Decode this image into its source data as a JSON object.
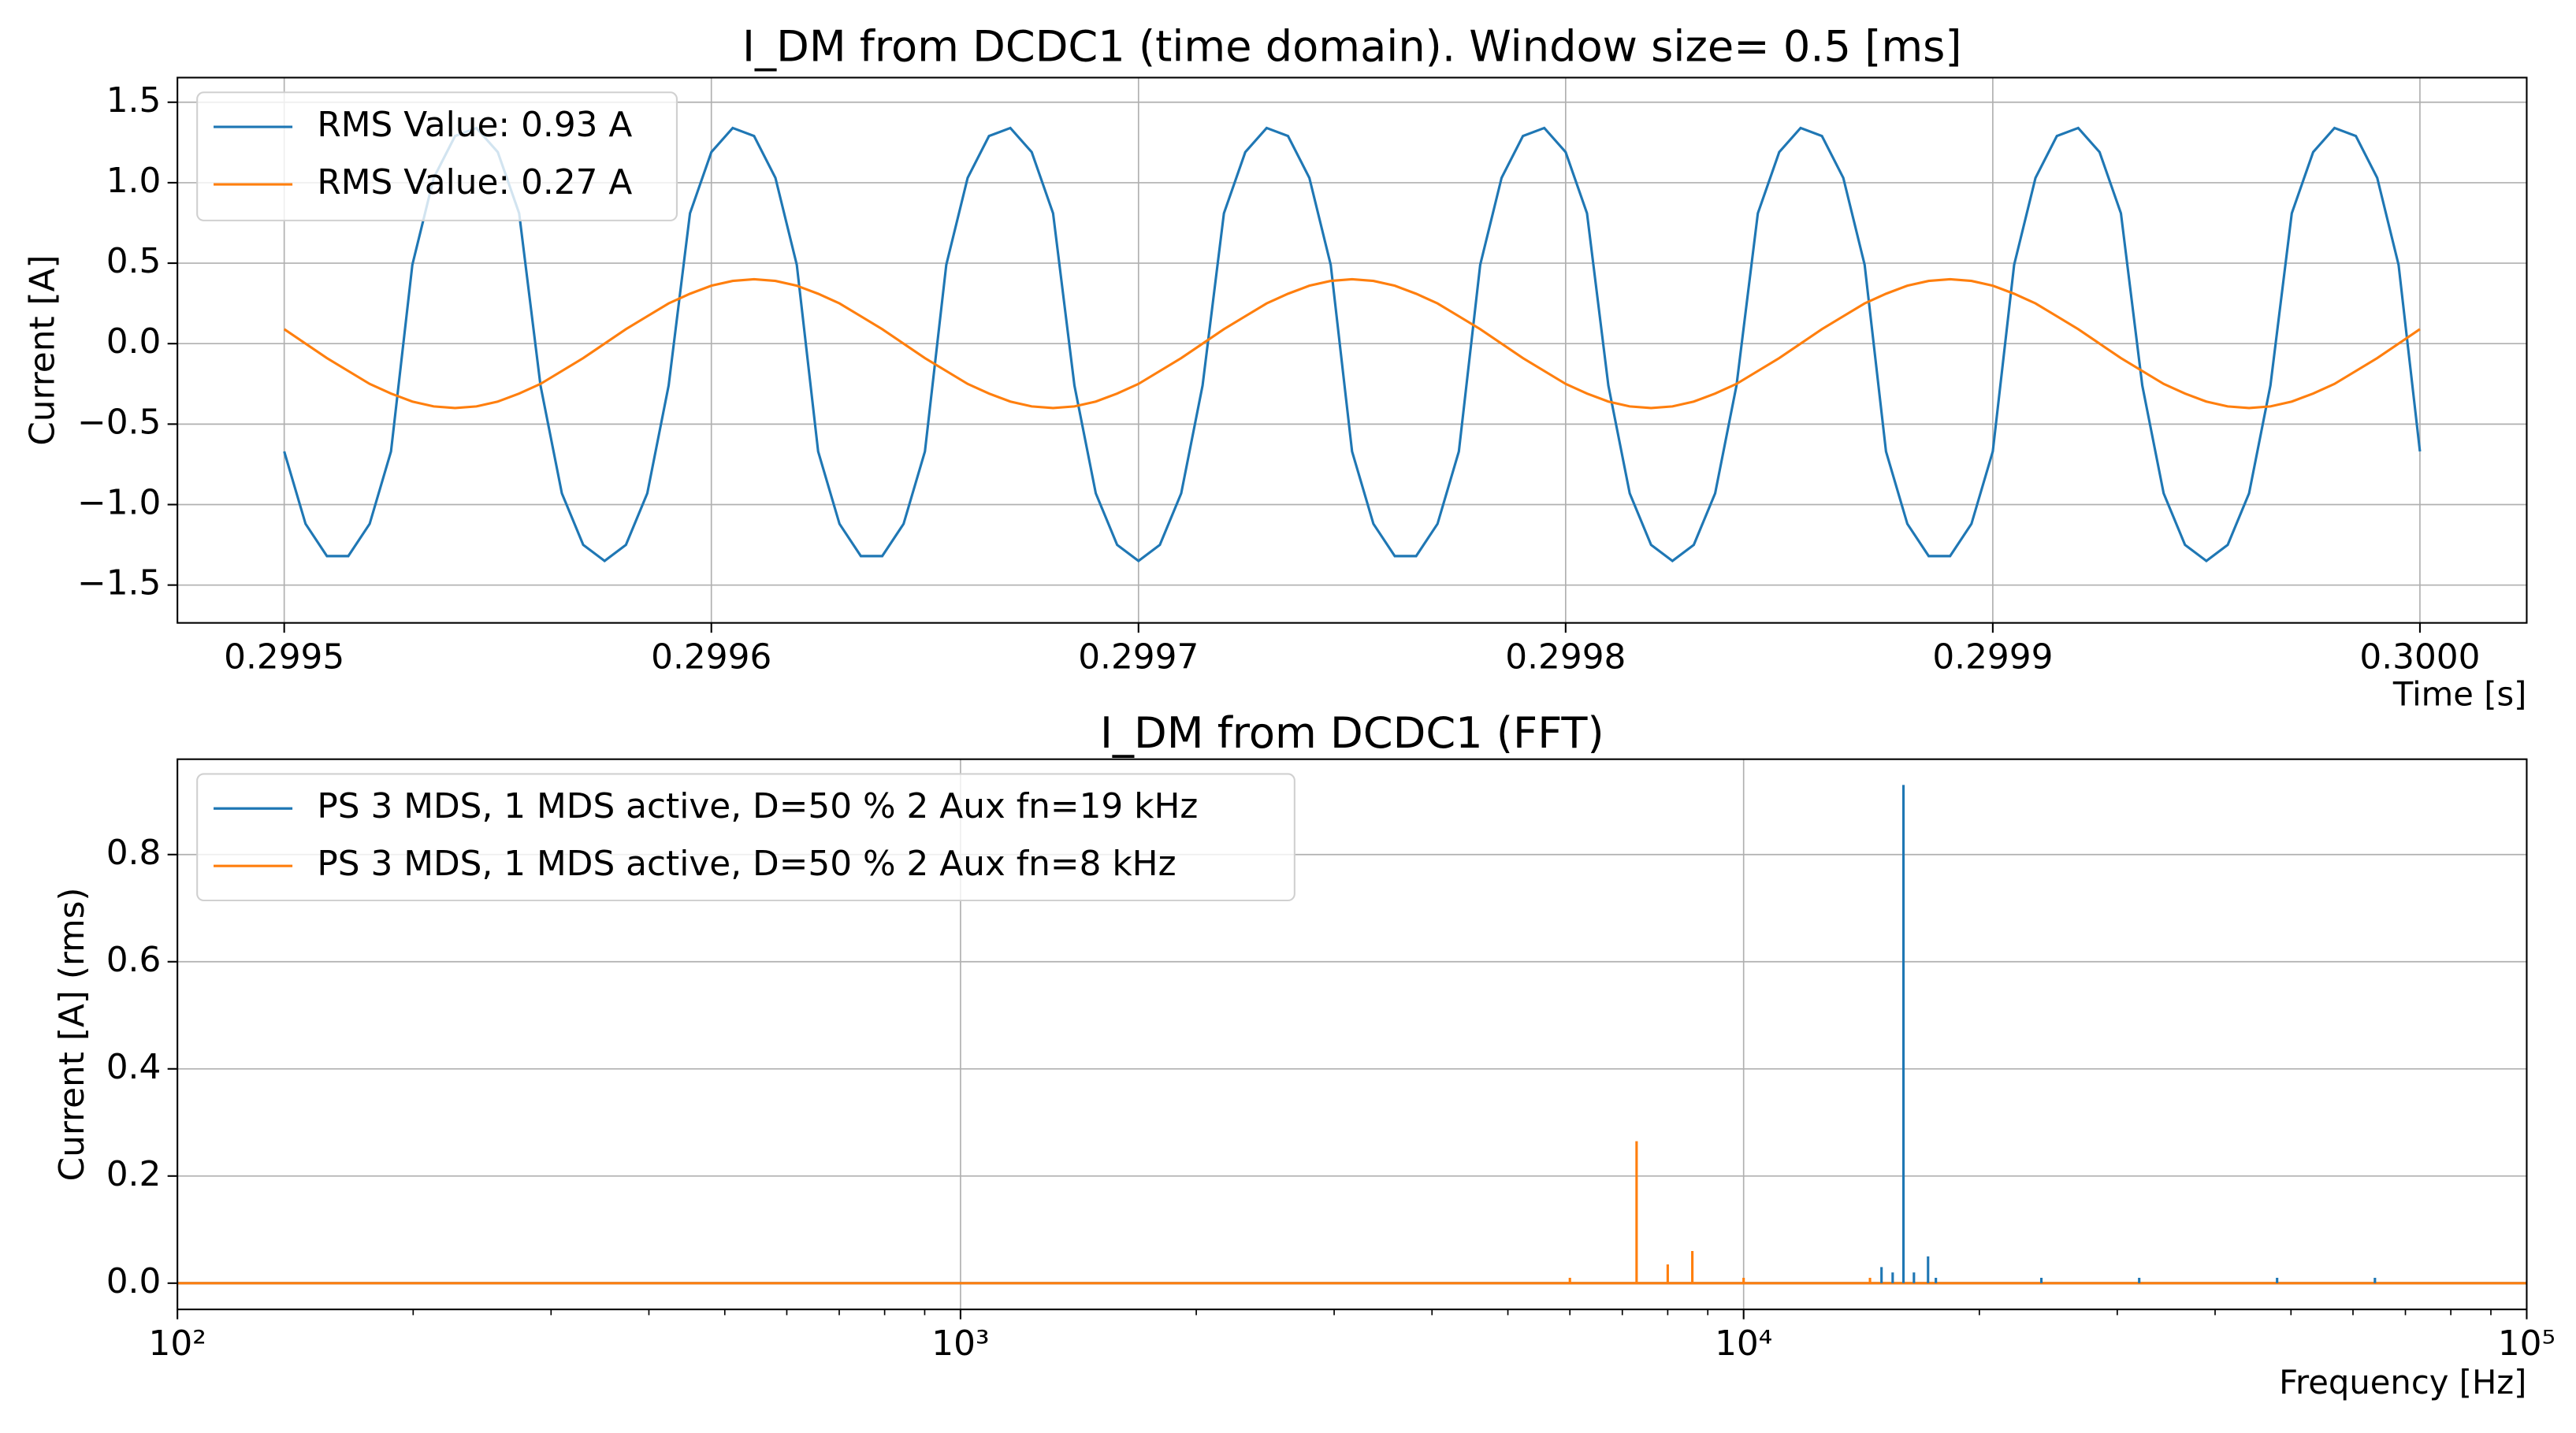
{
  "chart_data": [
    {
      "type": "line",
      "title": "I_DM from DCDC1 (time domain). Window size= 0.5 [ms]",
      "x_label": "Time [s]",
      "y_label": "Current [A]",
      "x": [
        0.2995,
        0.299505,
        0.29951,
        0.299515,
        0.29952,
        0.299525,
        0.29953,
        0.299535,
        0.29954,
        0.299545,
        0.29955,
        0.299555,
        0.29956,
        0.299565,
        0.29957,
        0.299575,
        0.29958,
        0.299585,
        0.29959,
        0.299595,
        0.2996,
        0.299605,
        0.29961,
        0.299615,
        0.29962,
        0.299625,
        0.29963,
        0.299635,
        0.29964,
        0.299645,
        0.29965,
        0.299655,
        0.29966,
        0.299665,
        0.29967,
        0.299675,
        0.29968,
        0.299685,
        0.29969,
        0.299695,
        0.2997,
        0.299705,
        0.29971,
        0.299715,
        0.29972,
        0.299725,
        0.29973,
        0.299735,
        0.29974,
        0.299745,
        0.29975,
        0.299755,
        0.29976,
        0.299765,
        0.29977,
        0.299775,
        0.29978,
        0.299785,
        0.29979,
        0.299795,
        0.2998,
        0.299805,
        0.29981,
        0.299815,
        0.29982,
        0.299825,
        0.29983,
        0.299835,
        0.29984,
        0.299845,
        0.29985,
        0.299855,
        0.29986,
        0.299865,
        0.29987,
        0.299875,
        0.29988,
        0.299885,
        0.29989,
        0.299895,
        0.2999,
        0.299905,
        0.29991,
        0.299915,
        0.29992,
        0.299925,
        0.29993,
        0.299935,
        0.29994,
        0.299945,
        0.29995,
        0.299955,
        0.29996,
        0.299965,
        0.29997,
        0.299975,
        0.29998,
        0.299985,
        0.29999,
        0.299995,
        0.3
      ],
      "series": [
        {
          "name": "RMS Value: 0.93 A",
          "color": "#1f77b4",
          "values": [
            -0.67,
            -1.12,
            -1.32,
            -1.32,
            -1.12,
            -0.67,
            0.49,
            1.03,
            1.29,
            1.34,
            1.19,
            0.81,
            -0.26,
            -0.93,
            -1.25,
            -1.35,
            -1.25,
            -0.93,
            -0.26,
            0.81,
            1.19,
            1.34,
            1.29,
            1.03,
            0.49,
            -0.67,
            -1.12,
            -1.32,
            -1.32,
            -1.12,
            -0.67,
            0.49,
            1.03,
            1.29,
            1.34,
            1.19,
            0.81,
            -0.26,
            -0.93,
            -1.25,
            -1.35,
            -1.25,
            -0.93,
            -0.26,
            0.81,
            1.19,
            1.34,
            1.29,
            1.03,
            0.49,
            -0.67,
            -1.12,
            -1.32,
            -1.32,
            -1.12,
            -0.67,
            0.49,
            1.03,
            1.29,
            1.34,
            1.19,
            0.81,
            -0.26,
            -0.93,
            -1.25,
            -1.35,
            -1.25,
            -0.93,
            -0.26,
            0.81,
            1.19,
            1.34,
            1.29,
            1.03,
            0.49,
            -0.67,
            -1.12,
            -1.32,
            -1.32,
            -1.12,
            -0.67,
            0.49,
            1.03,
            1.29,
            1.34,
            1.19,
            0.81,
            -0.26,
            -0.93,
            -1.25,
            -1.35,
            -1.25,
            -0.93,
            -0.26,
            0.81,
            1.19,
            1.34,
            1.29,
            1.03,
            0.49,
            -0.67
          ]
        },
        {
          "name": "RMS Value: 0.27 A",
          "color": "#ff7f0e",
          "values": [
            0.09,
            0,
            -0.09,
            -0.17,
            -0.25,
            -0.31,
            -0.36,
            -0.39,
            -0.4,
            -0.39,
            -0.36,
            -0.31,
            -0.25,
            -0.17,
            -0.09,
            0,
            0.09,
            0.17,
            0.25,
            0.31,
            0.36,
            0.39,
            0.4,
            0.39,
            0.36,
            0.31,
            0.25,
            0.17,
            0.09,
            0,
            -0.09,
            -0.17,
            -0.25,
            -0.31,
            -0.36,
            -0.39,
            -0.4,
            -0.39,
            -0.36,
            -0.31,
            -0.25,
            -0.17,
            -0.09,
            0,
            0.09,
            0.17,
            0.25,
            0.31,
            0.36,
            0.39,
            0.4,
            0.39,
            0.36,
            0.31,
            0.25,
            0.17,
            0.09,
            0,
            -0.09,
            -0.17,
            -0.25,
            -0.31,
            -0.36,
            -0.39,
            -0.4,
            -0.39,
            -0.36,
            -0.31,
            -0.25,
            -0.17,
            -0.09,
            0,
            0.09,
            0.17,
            0.25,
            0.31,
            0.36,
            0.39,
            0.4,
            0.39,
            0.36,
            0.31,
            0.25,
            0.17,
            0.09,
            0,
            -0.09,
            -0.17,
            -0.25,
            -0.31,
            -0.36,
            -0.39,
            -0.4,
            -0.39,
            -0.36,
            -0.31,
            -0.25,
            -0.17,
            -0.09,
            0,
            0.09
          ]
        }
      ],
      "xlim": [
        0.299475,
        0.300025
      ],
      "xticks": [
        0.2995,
        0.2996,
        0.2997,
        0.2998,
        0.2999,
        {
          "value": 0.3,
          "label": "0.3000"
        }
      ],
      "ylim": [
        -1.735,
        1.653
      ],
      "yticks": [
        {
          "value": -1.5,
          "label": "−1.5"
        },
        {
          "value": -1,
          "label": "−1.0"
        },
        {
          "value": -0.5,
          "label": "−0.5"
        },
        {
          "value": 0,
          "label": "0.0"
        },
        0.5,
        {
          "value": 1,
          "label": "1.0"
        },
        1.5
      ],
      "grid": true,
      "legend": "upper left"
    },
    {
      "type": "stem",
      "title": "I_DM from DCDC1 (FFT)",
      "x_label": "Frequency [Hz]",
      "y_label": "Current [A] (rms)",
      "series": [
        {
          "name": "PS 3 MDS, 1 MDS active, D=50 % 2 Aux fn=19 kHz",
          "color": "#1f77b4",
          "x": [
            15000,
            15500,
            16000,
            16500,
            17200,
            17600,
            24000,
            32000,
            48000,
            64000
          ],
          "values": [
            0.03,
            0.02,
            0.93,
            0.02,
            0.05,
            0.01,
            0.01,
            0.01,
            0.01,
            0.01
          ]
        },
        {
          "name": "PS 3 MDS, 1 MDS active, D=50 % 2 Aux fn=8 kHz",
          "color": "#ff7f0e",
          "x": [
            6000,
            7300,
            8000,
            8600,
            10000,
            14500
          ],
          "values": [
            0.01,
            0.265,
            0.035,
            0.06,
            0.01,
            0.01
          ]
        }
      ],
      "xscale": "log",
      "xlim": [
        100,
        100000
      ],
      "xticks": [
        {
          "value": 100,
          "label": "10²"
        },
        {
          "value": 1000,
          "label": "10³"
        },
        {
          "value": 10000,
          "label": "10⁴"
        },
        {
          "value": 100000,
          "label": "10⁵"
        }
      ],
      "ylim": [
        -0.049,
        0.978
      ],
      "yticks": [
        {
          "value": 0,
          "label": "0.0"
        },
        0.2,
        0.4,
        0.6,
        0.8
      ],
      "grid": true,
      "legend": "upper left"
    }
  ]
}
